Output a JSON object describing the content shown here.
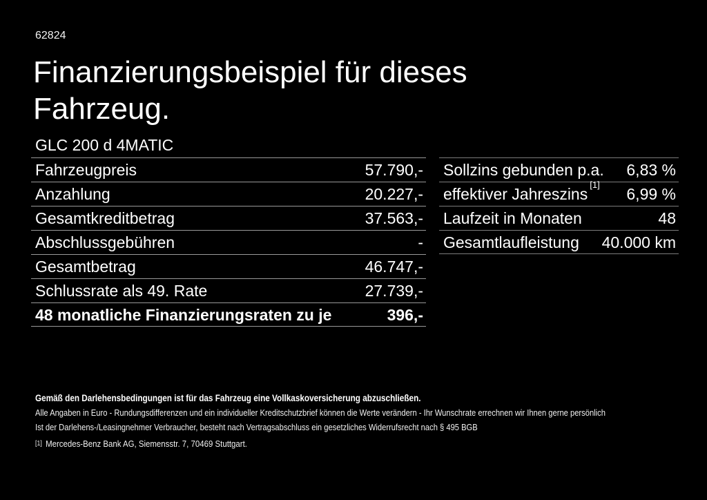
{
  "header": {
    "code": "62824",
    "title_line1": "Finanzierungsbeispiel für dieses",
    "title_line2": "Fahrzeug.",
    "model": "GLC 200 d 4MATIC"
  },
  "finance_table": {
    "rows": [
      {
        "label": "Fahrzeugpreis",
        "value": "57.790,-"
      },
      {
        "label": "Anzahlung",
        "value": "20.227,-"
      },
      {
        "label": "Gesamtkreditbetrag",
        "value": "37.563,-"
      },
      {
        "label": "Abschlussgebühren",
        "value": "-"
      },
      {
        "label": "Gesamtbetrag",
        "value": "46.747,-"
      },
      {
        "label": "Schlussrate als 49. Rate",
        "value": "27.739,-"
      },
      {
        "label": "48 monatliche Finanzierungsraten zu je",
        "value": "396,-",
        "bold": true
      }
    ]
  },
  "conditions_table": {
    "rows": [
      {
        "label": "Sollzins gebunden p.a.",
        "value": "6,83 %"
      },
      {
        "label": "effektiver Jahreszins",
        "label_sup": "[1]",
        "value": "6,99 %"
      },
      {
        "label": "Laufzeit in Monaten",
        "value": "48"
      },
      {
        "label": "Gesamtlaufleistung",
        "value": "40.000 km"
      }
    ]
  },
  "fine_print": {
    "insurance_note": "Gemäß den Darlehensbedingungen ist für das Fahrzeug eine Vollkaskoversicherung abzuschließen.",
    "line2": "Alle Angaben in Euro - Rundungsdifferenzen und ein individueller Kreditschutzbrief können die Werte verändern - Ihr Wunschrate errechnen wir Ihnen gerne persönlich",
    "line3": "Ist der Darlehens-/Leasingnehmer Verbraucher, besteht nach Vertragsabschluss ein gesetzliches Widerrufsrecht nach § 495 BGB",
    "footnote_marker": "[1]",
    "footnote_text": "Mercedes-Benz Bank AG, Siemensstr. 7, 70469 Stuttgart."
  },
  "colors": {
    "background": "#000000",
    "text": "#ffffff",
    "divider_left_table": "#9a9a9a",
    "divider_right_table": "#7d7d7d"
  }
}
